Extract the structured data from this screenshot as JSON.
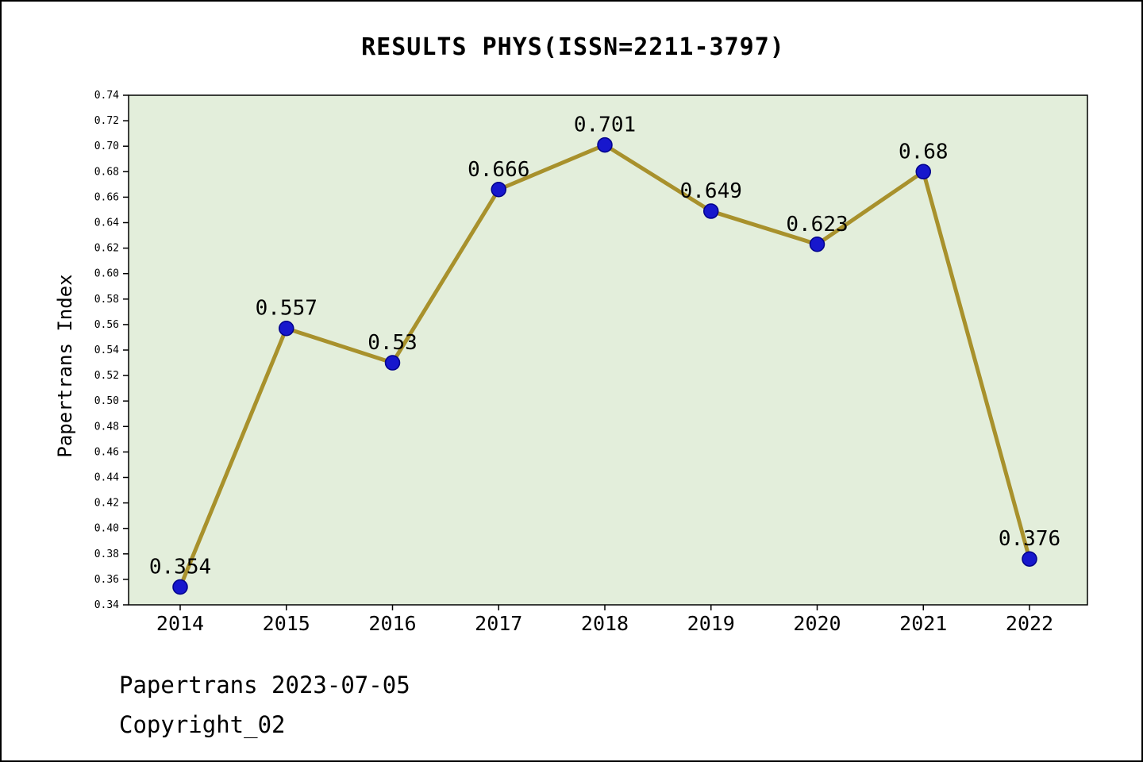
{
  "header": {
    "title": "RESULTS PHYS(ISSN=2211-3797)"
  },
  "footer": {
    "line1": "Papertrans 2023-07-05",
    "line2": "Copyright_02"
  },
  "chart_data": {
    "type": "line",
    "title": "RESULTS PHYS(ISSN=2211-3797)",
    "xlabel": "",
    "ylabel": "Papertrans Index",
    "categories": [
      "2014",
      "2015",
      "2016",
      "2017",
      "2018",
      "2019",
      "2020",
      "2021",
      "2022"
    ],
    "values": [
      0.354,
      0.557,
      0.53,
      0.666,
      0.701,
      0.649,
      0.623,
      0.68,
      0.376
    ],
    "point_labels": [
      "0.354",
      "0.557",
      "0.53",
      "0.666",
      "0.701",
      "0.649",
      "0.623",
      "0.68",
      "0.376"
    ],
    "ylim": [
      0.34,
      0.74
    ],
    "ytick_step": 0.02,
    "grid": false,
    "legend": "none",
    "colors": {
      "line": "#a8912c",
      "marker_fill": "#1717cd",
      "marker_stroke": "#00008b",
      "plot_bg": "#e3eedb",
      "axis": "#000000",
      "text": "#000000"
    }
  }
}
